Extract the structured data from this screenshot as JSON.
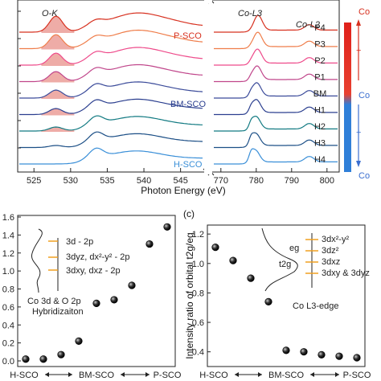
{
  "chart_data": [
    {
      "type": "line",
      "panel": "",
      "xlabel": "Photon Energy (eV)",
      "ylabel": "",
      "x_ticks_left": [
        "525",
        "530",
        "535",
        "540",
        "545"
      ],
      "x_ticks_right": [
        "770",
        "780",
        "790",
        "800"
      ],
      "xlim_left": [
        523,
        548
      ],
      "xlim_right": [
        768,
        803
      ],
      "edge_labels": {
        "ok": "O-K",
        "col3": "Co-L3",
        "col2": "Co-L2"
      },
      "side_labels": {
        "psco": "P-SCO",
        "bmsco": "BM-SCO",
        "hsco": "H-SCO"
      },
      "series": [
        {
          "name": "P4",
          "color": "#d7301f"
        },
        {
          "name": "P3",
          "color": "#ef7d4a"
        },
        {
          "name": "P2",
          "color": "#ee4a8a"
        },
        {
          "name": "P1",
          "color": "#c0468b"
        },
        {
          "name": "BM",
          "color": "#3b4b9a"
        },
        {
          "name": "H1",
          "color": "#2b3f8f"
        },
        {
          "name": "H2",
          "color": "#127a82"
        },
        {
          "name": "H3",
          "color": "#1c4f86"
        },
        {
          "name": "H4",
          "color": "#3a8fd8"
        }
      ],
      "colorbar": {
        "top_label": "Co",
        "bottom_label": "Co",
        "plus": "+"
      },
      "grid": false
    },
    {
      "type": "scatter",
      "panel": "",
      "ylabel": "",
      "y_ticks": [
        "0.0",
        "0.2",
        "0.4",
        "0.6",
        "0.8",
        "1.0",
        "1.2",
        "1.4",
        "1.6"
      ],
      "ylim": [
        0,
        1.6
      ],
      "x_group_labels": [
        "H-SCO",
        "BM-SCO",
        "P-SCO"
      ],
      "values": [
        0.02,
        0.02,
        0.07,
        0.22,
        0.64,
        0.68,
        0.84,
        1.3,
        1.49
      ],
      "inset": {
        "transitions": [
          "3d - 2p",
          "3dyz, dx²-y² - 2p",
          "3dxy, dxz - 2p"
        ],
        "caption_line1": "Co 3d & O 2p",
        "caption_line2": "Hybridizaiton"
      },
      "grid": false
    },
    {
      "type": "scatter",
      "panel": "(c)",
      "ylabel": "Intensity ratio of orbital t2g/eg",
      "y_ticks": [
        "0.4",
        "0.6",
        "0.8",
        "1.0",
        "1.2"
      ],
      "ylim": [
        0.3,
        1.25
      ],
      "x_group_labels": [
        "H-SCO",
        "BM-SCO",
        "P-SCO"
      ],
      "values": [
        1.11,
        1.02,
        0.9,
        0.74,
        0.41,
        0.4,
        0.38,
        0.37,
        0.36
      ],
      "inset": {
        "eg": "eg",
        "t2g": "t2g",
        "orbitals": [
          "3dx²-y²",
          "3dz²",
          "3dxz",
          "3dxy & 3dyz"
        ],
        "caption": "Co L3-edge"
      },
      "grid": false
    }
  ]
}
